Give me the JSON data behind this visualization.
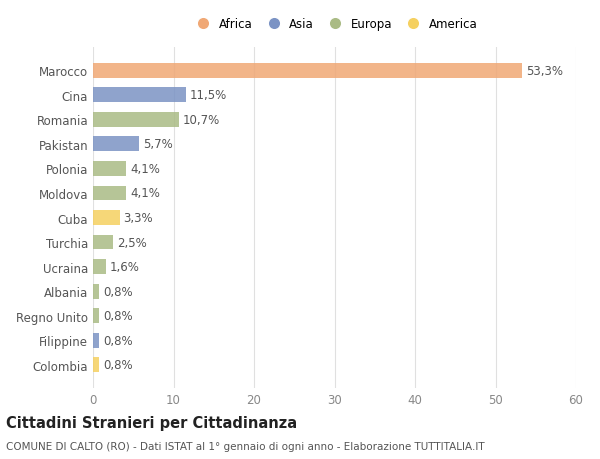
{
  "categories": [
    "Marocco",
    "Cina",
    "Romania",
    "Pakistan",
    "Polonia",
    "Moldova",
    "Cuba",
    "Turchia",
    "Ucraina",
    "Albania",
    "Regno Unito",
    "Filippine",
    "Colombia"
  ],
  "values": [
    53.3,
    11.5,
    10.7,
    5.7,
    4.1,
    4.1,
    3.3,
    2.5,
    1.6,
    0.8,
    0.8,
    0.8,
    0.8
  ],
  "labels": [
    "53,3%",
    "11,5%",
    "10,7%",
    "5,7%",
    "4,1%",
    "4,1%",
    "3,3%",
    "2,5%",
    "1,6%",
    "0,8%",
    "0,8%",
    "0,8%",
    "0,8%"
  ],
  "colors": [
    "#F0A875",
    "#7B93C4",
    "#AABB85",
    "#7B93C4",
    "#AABB85",
    "#AABB85",
    "#F5D060",
    "#AABB85",
    "#AABB85",
    "#AABB85",
    "#AABB85",
    "#7B93C4",
    "#F5D060"
  ],
  "legend_labels": [
    "Africa",
    "Asia",
    "Europa",
    "America"
  ],
  "legend_colors": [
    "#F0A875",
    "#7B93C4",
    "#AABB85",
    "#F5D060"
  ],
  "xlim": [
    0,
    60
  ],
  "xticks": [
    0,
    10,
    20,
    30,
    40,
    50,
    60
  ],
  "title_main": "Cittadini Stranieri per Cittadinanza",
  "title_sub": "COMUNE DI CALTO (RO) - Dati ISTAT al 1° gennaio di ogni anno - Elaborazione TUTTITALIA.IT",
  "bg_color": "#ffffff",
  "grid_color": "#e0e0e0",
  "bar_height": 0.6,
  "label_fontsize": 8.5,
  "tick_fontsize": 8.5,
  "title_fontsize": 10.5,
  "subtitle_fontsize": 7.5
}
